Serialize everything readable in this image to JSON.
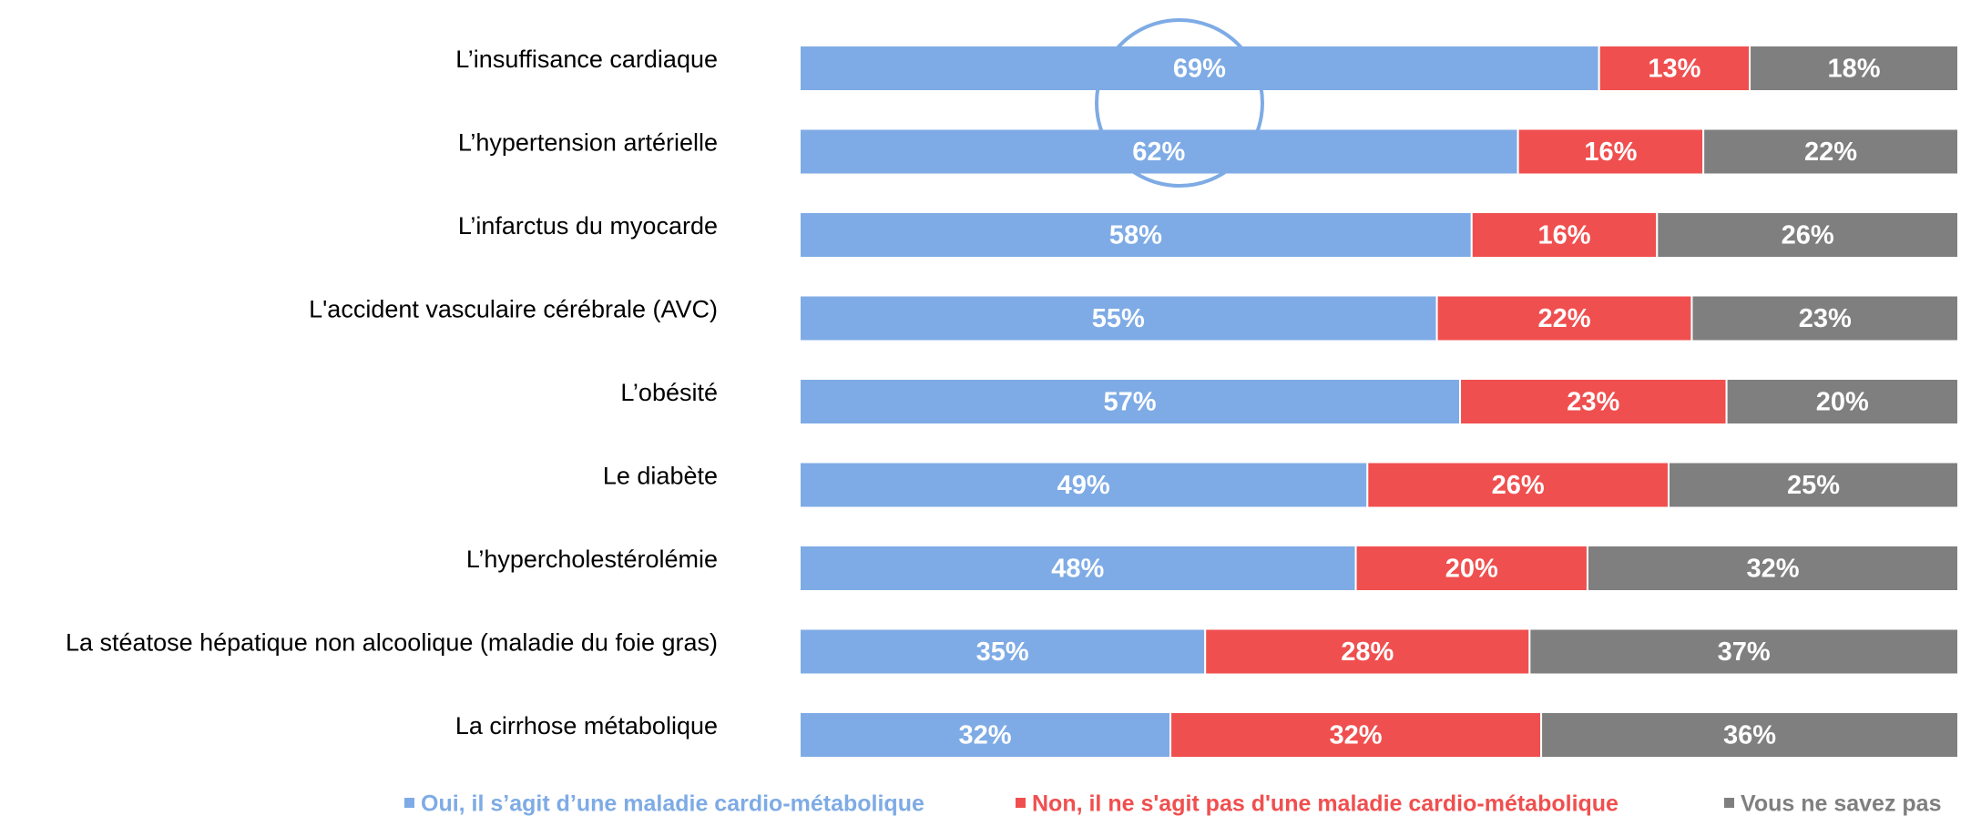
{
  "chart_data": {
    "type": "stacked_barh",
    "categories": [
      "L’insuffisance cardiaque",
      "L’hypertension artérielle",
      "L’infarctus du myocarde",
      "L'accident vasculaire cérébrale (AVC)",
      "L’obésité",
      "Le diabète",
      "L’hypercholestérolémie",
      "La stéatose hépatique non alcoolique (maladie du foie gras)",
      "La cirrhose métabolique"
    ],
    "series": [
      {
        "name": "Oui, il s’agit d’une maladie cardio-métabolique",
        "color": "#7eabe5",
        "values": [
          69,
          62,
          58,
          55,
          57,
          49,
          48,
          35,
          32
        ],
        "value_labels": [
          "69%",
          "62%",
          "58%",
          "55%",
          "57%",
          "49%",
          "48%",
          "35%",
          "32%"
        ]
      },
      {
        "name": "Non, il ne s'agit pas d'une maladie cardio-métabolique",
        "color": "#f04f4f",
        "values": [
          13,
          16,
          16,
          22,
          23,
          26,
          20,
          28,
          32
        ],
        "value_labels": [
          "13%",
          "16%",
          "16%",
          "22%",
          "23%",
          "26%",
          "20%",
          "28%",
          "32%"
        ]
      },
      {
        "name": "Vous ne savez pas",
        "color": "#7f7f7f",
        "values": [
          18,
          22,
          26,
          23,
          20,
          25,
          32,
          37,
          36
        ],
        "value_labels": [
          "18%",
          "22%",
          "26%",
          "23%",
          "20%",
          "25%",
          "32%",
          "37%",
          "36%"
        ]
      }
    ],
    "legend": "bottom"
  }
}
